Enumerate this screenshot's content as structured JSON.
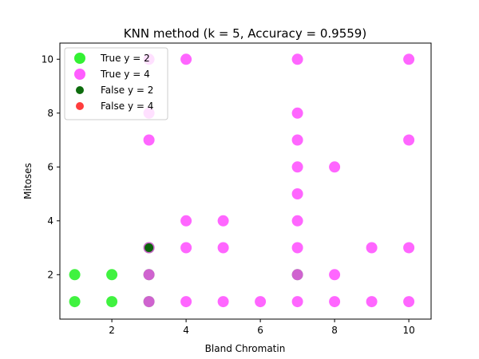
{
  "chart_data": {
    "type": "scatter",
    "title": "KNN method (k = 5, Accuracy = 0.9559)",
    "xlabel": "Bland Chromatin",
    "ylabel": "Mitoses",
    "xlim": [
      0.6,
      10.6
    ],
    "ylim": [
      0.35,
      10.6
    ],
    "xticks": [
      2,
      4,
      6,
      8,
      10
    ],
    "yticks": [
      2,
      4,
      6,
      8,
      10
    ],
    "grid": false,
    "legend": "top-left",
    "series": [
      {
        "name": "True y = 2",
        "color": "#00ee00",
        "points": [
          [
            1,
            1
          ],
          [
            1,
            2
          ],
          [
            2,
            1
          ],
          [
            2,
            2
          ],
          [
            3,
            1
          ],
          [
            3,
            2
          ],
          [
            3,
            3
          ],
          [
            7,
            2
          ]
        ]
      },
      {
        "name": "True y = 4",
        "color": "#ff33ff",
        "points": [
          [
            3,
            10
          ],
          [
            3,
            8
          ],
          [
            3,
            7
          ],
          [
            3,
            3
          ],
          [
            3,
            2
          ],
          [
            3,
            1
          ],
          [
            4,
            10
          ],
          [
            4,
            4
          ],
          [
            4,
            3
          ],
          [
            4,
            1
          ],
          [
            5,
            4
          ],
          [
            5,
            3
          ],
          [
            5,
            1
          ],
          [
            6,
            1
          ],
          [
            7,
            10
          ],
          [
            7,
            8
          ],
          [
            7,
            7
          ],
          [
            7,
            6
          ],
          [
            7,
            5
          ],
          [
            7,
            4
          ],
          [
            7,
            3
          ],
          [
            7,
            2
          ],
          [
            7,
            1
          ],
          [
            8,
            6
          ],
          [
            8,
            2
          ],
          [
            8,
            1
          ],
          [
            9,
            3
          ],
          [
            9,
            1
          ],
          [
            10,
            10
          ],
          [
            10,
            7
          ],
          [
            10,
            3
          ],
          [
            10,
            1
          ]
        ]
      },
      {
        "name": "False y = 2",
        "color": "#006400",
        "points": [
          [
            3,
            3
          ]
        ]
      },
      {
        "name": "False y = 4",
        "color": "#ff3333",
        "points": []
      }
    ]
  }
}
